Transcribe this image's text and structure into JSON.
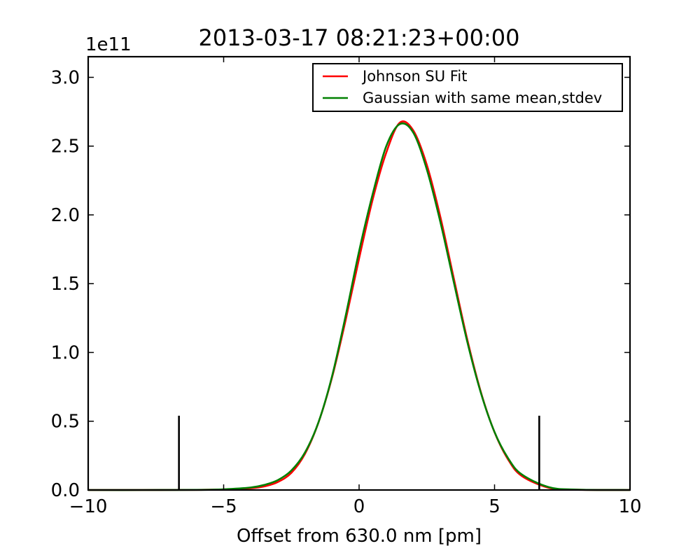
{
  "chart_data": {
    "type": "line",
    "title": "2013-03-17 08:21:23+00:00",
    "xlabel": "Offset from 630.0 nm [pm]",
    "ylabel": "",
    "y_scale_label": "1e11",
    "xlim": [
      -10,
      10
    ],
    "ylim": [
      0,
      3.15
    ],
    "y_multiplier": 100000000000,
    "xticks": [
      -10,
      -5,
      0,
      5,
      10
    ],
    "xtick_labels": [
      "−10",
      "−5",
      "0",
      "5",
      "10"
    ],
    "yticks": [
      0.0,
      0.5,
      1.0,
      1.5,
      2.0,
      2.5,
      3.0
    ],
    "ytick_labels": [
      "0.0",
      "0.5",
      "1.0",
      "1.5",
      "2.0",
      "2.5",
      "3.0"
    ],
    "grid": false,
    "legend_position": "top-right",
    "series": [
      {
        "name": "Johnson SU Fit",
        "color": "#ff0000",
        "x": [
          -10,
          -8,
          -6,
          -5,
          -4,
          -3.5,
          -3,
          -2.5,
          -2,
          -1.5,
          -1,
          -0.5,
          0,
          0.5,
          1,
          1.5,
          2,
          2.5,
          3,
          3.5,
          4,
          4.5,
          5,
          5.5,
          6,
          7,
          8,
          10
        ],
        "y": [
          0,
          0.0,
          0.001,
          0.004,
          0.013,
          0.026,
          0.058,
          0.125,
          0.262,
          0.491,
          0.817,
          1.232,
          1.683,
          2.111,
          2.451,
          2.67,
          2.614,
          2.364,
          1.985,
          1.535,
          1.089,
          0.709,
          0.42,
          0.222,
          0.103,
          0.016,
          0.002,
          0
        ]
      },
      {
        "name": "Gaussian with same mean,stdev",
        "color": "#008000",
        "x": [
          -10,
          -8,
          -6,
          -5,
          -4,
          -3.5,
          -3,
          -2.5,
          -2,
          -1.5,
          -1,
          -0.5,
          0,
          0.5,
          1,
          1.5,
          2,
          2.5,
          3,
          3.5,
          4,
          4.5,
          5,
          5.5,
          6,
          7,
          8,
          10
        ],
        "y": [
          0,
          0.0,
          0.001,
          0.005,
          0.018,
          0.037,
          0.072,
          0.142,
          0.272,
          0.492,
          0.826,
          1.263,
          1.736,
          2.15,
          2.498,
          2.66,
          2.598,
          2.33,
          1.948,
          1.507,
          1.072,
          0.703,
          0.421,
          0.231,
          0.114,
          0.021,
          0.003,
          0
        ]
      }
    ],
    "vertical_lines": [
      {
        "x": -6.65,
        "y_top": 0.54,
        "color": "#000000"
      },
      {
        "x": 6.65,
        "y_top": 0.54,
        "color": "#000000"
      }
    ]
  }
}
